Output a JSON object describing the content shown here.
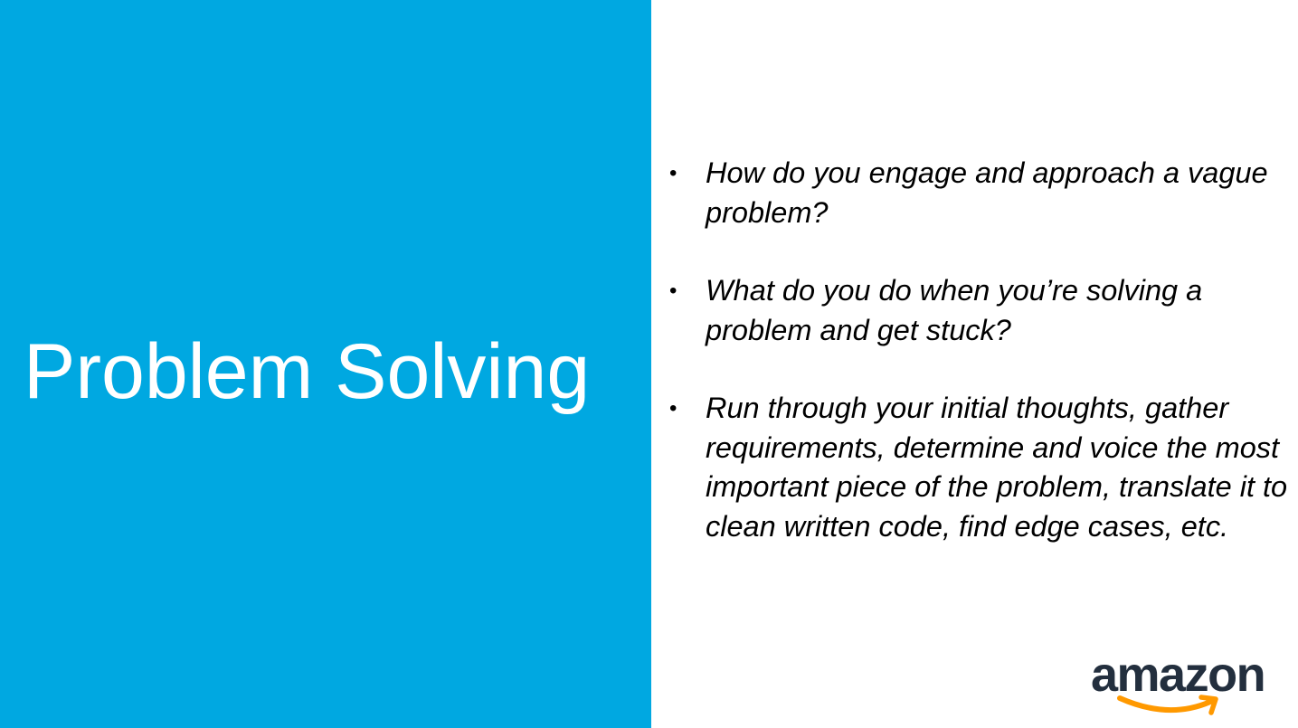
{
  "slide": {
    "title": "Problem Solving",
    "bullet_symbol": "•",
    "bullets": [
      "How do you engage and approach a vague problem?",
      "What do you do when you’re solving a problem and get stuck?",
      "Run through your initial thoughts, gather requirements, determine and voice the most important piece of the problem, translate it to clean written code, find edge cases, etc."
    ]
  },
  "logo": {
    "text": "amazon",
    "icon": "amazon-smile-icon"
  },
  "colors": {
    "panel": "#00a8e1",
    "title_text": "#ffffff",
    "body_text": "#000000",
    "logo_text": "#232f3e",
    "logo_smile": "#ff9900"
  }
}
